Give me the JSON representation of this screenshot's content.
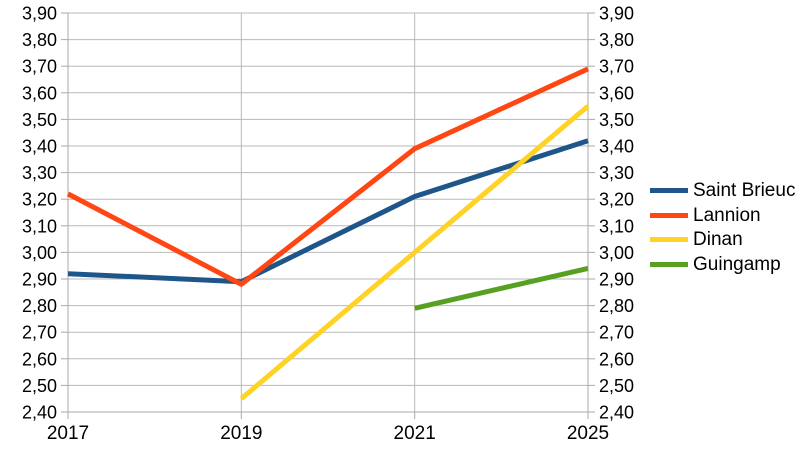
{
  "chart_data": {
    "type": "line",
    "title": "",
    "xlabel": "",
    "ylabel": "",
    "categories": [
      "2017",
      "2019",
      "2021",
      "2025"
    ],
    "x_tick_labels": [
      "2017",
      "2019",
      "2021",
      "2025"
    ],
    "series": [
      {
        "name": "Saint Brieuc",
        "color": "#1e568a",
        "values": [
          2.92,
          2.89,
          3.21,
          3.42
        ]
      },
      {
        "name": "Lannion",
        "color": "#ff4613",
        "values": [
          3.22,
          2.88,
          3.39,
          3.69
        ]
      },
      {
        "name": "Dinan",
        "color": "#ffd226",
        "values": [
          null,
          2.45,
          3.0,
          3.55
        ]
      },
      {
        "name": "Guingamp",
        "color": "#57a021",
        "values": [
          null,
          null,
          2.79,
          2.94
        ]
      }
    ],
    "y_axis": {
      "min": 2.4,
      "max": 3.9,
      "step": 0.1,
      "sides": [
        "left",
        "right"
      ],
      "decimal_separator": ",",
      "tick_labels": [
        "2,40",
        "2,50",
        "2,60",
        "2,70",
        "2,80",
        "2,90",
        "3,00",
        "3,10",
        "3,20",
        "3,30",
        "3,40",
        "3,50",
        "3,60",
        "3,70",
        "3,80",
        "3,90"
      ]
    },
    "legend": {
      "position": "right",
      "entries": [
        "Saint Brieuc",
        "Lannion",
        "Dinan",
        "Guingamp"
      ]
    },
    "grid": true
  },
  "palette": {
    "grid": "#b9b9b9",
    "axis": "#a9a9a9",
    "text": "#000000",
    "background": "#ffffff"
  }
}
